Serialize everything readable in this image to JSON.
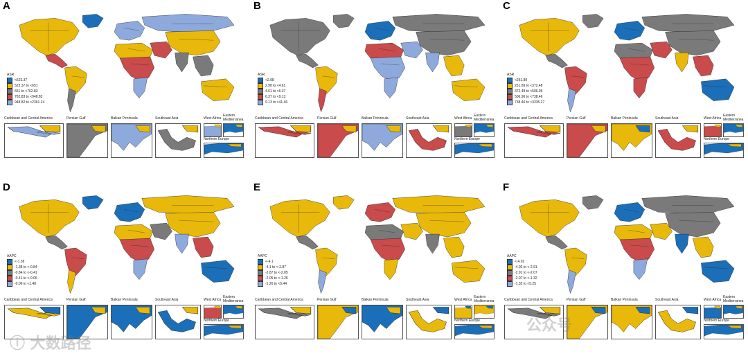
{
  "colors": {
    "c1": "#1b6fb8",
    "c2": "#e8b90a",
    "c3": "#7a7a7a",
    "c4": "#c94b4b",
    "c5": "#8ea9dc",
    "ocean": "#ffffff",
    "border": "#222222"
  },
  "panels": [
    {
      "letter": "A",
      "legend_title": "ASR",
      "legend_items": [
        "<523.37",
        "523.37 to <651",
        "651 to <762.83",
        "762.83 to <948.82",
        "948.82 to <2361.24"
      ],
      "regions": {
        "na": "c2",
        "greenland": "c1",
        "ca": "c4",
        "sa": "c2",
        "sa_s": "c3",
        "europe": "c5",
        "nafrica": "c2",
        "africa": "c4",
        "safrica": "c5",
        "mideast": "c4",
        "russia": "c5",
        "asia": "c2",
        "india": "c3",
        "sea": "c3",
        "aus": "c2"
      },
      "insets": {
        "caribbean": "c5",
        "persian": "c3",
        "balkan": "c5",
        "seasia": "c3",
        "wafrica": "c5",
        "emed": "c1",
        "neurope": "c1"
      }
    },
    {
      "letter": "B",
      "legend_title": "ASR",
      "legend_items": [
        "<2.98",
        "2.98 to <4.61",
        "4.61 to <6.37",
        "6.37 to <9.13",
        "9.13 to <41.46"
      ],
      "regions": {
        "na": "c3",
        "greenland": "c3",
        "ca": "c3",
        "sa": "c2",
        "sa_s": "c4",
        "europe": "c1",
        "nafrica": "c4",
        "africa": "c5",
        "safrica": "c5",
        "mideast": "c5",
        "russia": "c3",
        "asia": "c3",
        "india": "c5",
        "sea": "c2",
        "aus": "c2"
      },
      "insets": {
        "caribbean": "c4",
        "persian": "c4",
        "balkan": "c5",
        "seasia": "c4",
        "wafrica": "c3",
        "emed": "c1",
        "neurope": "c1"
      }
    },
    {
      "letter": "C",
      "legend_title": "ASR",
      "legend_items": [
        "<251.89",
        "251.89 to <372.48",
        "372.48 to <506.96",
        "506.96 to <738.46",
        "738.46 to <3335.27"
      ],
      "regions": {
        "na": "c2",
        "greenland": "c3",
        "ca": "c3",
        "sa": "c4",
        "sa_s": "c5",
        "europe": "c1",
        "nafrica": "c3",
        "africa": "c4",
        "safrica": "c4",
        "mideast": "c4",
        "russia": "c3",
        "asia": "c3",
        "india": "c2",
        "sea": "c4",
        "aus": "c1"
      },
      "insets": {
        "caribbean": "c4",
        "persian": "c4",
        "balkan": "c2",
        "seasia": "c4",
        "wafrica": "c4",
        "emed": "c1",
        "neurope": "c1"
      }
    },
    {
      "letter": "D",
      "legend_title": "AAPC",
      "legend_items": [
        "<-1.38",
        "-1.38 to <-0.84",
        "-0.84 to <-0.41",
        "-0.41 to <-0.06",
        "-0.06 to <1.48"
      ],
      "regions": {
        "na": "c2",
        "greenland": "c1",
        "ca": "c3",
        "sa": "c4",
        "sa_s": "c2",
        "europe": "c1",
        "nafrica": "c2",
        "africa": "c4",
        "safrica": "c5",
        "mideast": "c3",
        "russia": "c2",
        "asia": "c2",
        "india": "c5",
        "sea": "c4",
        "aus": "c1"
      },
      "insets": {
        "caribbean": "c2",
        "persian": "c1",
        "balkan": "c1",
        "seasia": "c1",
        "wafrica": "c4",
        "emed": "c1",
        "neurope": "c1"
      }
    },
    {
      "letter": "E",
      "legend_title": "AAPC",
      "legend_items": [
        "<-4.1",
        "-4.1 to <-2.87",
        "-2.87 to <-2.05",
        "-2.05 to <-1.26",
        "-1.26 to <5.44"
      ],
      "regions": {
        "na": "c2",
        "greenland": "c2",
        "ca": "c3",
        "sa": "c2",
        "sa_s": "c5",
        "europe": "c4",
        "nafrica": "c3",
        "africa": "c4",
        "safrica": "c2",
        "mideast": "c2",
        "russia": "c2",
        "asia": "c2",
        "india": "c3",
        "sea": "c2",
        "aus": "c2"
      },
      "insets": {
        "caribbean": "c3",
        "persian": "c2",
        "balkan": "c1",
        "seasia": "c2",
        "wafrica": "c2",
        "emed": "c2",
        "neurope": "c1"
      }
    },
    {
      "letter": "F",
      "legend_title": "AAPC",
      "legend_items": [
        "<-4.02",
        "-4.02 to <-2.91",
        "-2.91 to <-2.07",
        "-2.07 to <-1.32",
        "-1.32 to <5.25"
      ],
      "regions": {
        "na": "c2",
        "greenland": "c3",
        "ca": "c3",
        "sa": "c2",
        "sa_s": "c5",
        "europe": "c1",
        "nafrica": "c2",
        "africa": "c4",
        "safrica": "c5",
        "mideast": "c2",
        "russia": "c3",
        "asia": "c3",
        "india": "c1",
        "sea": "c2",
        "aus": "c1"
      },
      "insets": {
        "caribbean": "c3",
        "persian": "c2",
        "balkan": "c2",
        "seasia": "c2",
        "wafrica": "c1",
        "emed": "c1",
        "neurope": "c1"
      }
    }
  ],
  "inset_labels": {
    "caribbean": "Caribbean and Central America",
    "persian": "Persian Gulf",
    "balkan": "Balkan Peninsula",
    "seasia": "Southeast Asia",
    "wafrica": "West Africa",
    "emed": "Eastern Mediterranea",
    "neurope": "Northern Europe"
  }
}
